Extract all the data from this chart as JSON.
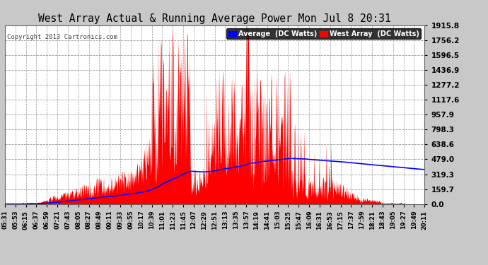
{
  "title": "West Array Actual & Running Average Power Mon Jul 8 20:31",
  "copyright": "Copyright 2013 Cartronics.com",
  "legend_avg": "Average  (DC Watts)",
  "legend_west": "West Array  (DC Watts)",
  "y_tick_labels": [
    "0.0",
    "159.7",
    "319.3",
    "479.0",
    "638.6",
    "798.3",
    "957.9",
    "1117.6",
    "1277.2",
    "1436.9",
    "1596.5",
    "1756.2",
    "1915.8"
  ],
  "y_tick_values": [
    0.0,
    159.7,
    319.3,
    479.0,
    638.6,
    798.3,
    957.9,
    1117.6,
    1277.2,
    1436.9,
    1596.5,
    1756.2,
    1915.8
  ],
  "ymax": 1915.8,
  "background_color": "#c8c8c8",
  "plot_bg_color": "#ffffff",
  "bar_color": "#ff0000",
  "avg_line_color": "#0000ff",
  "title_color": "#000000",
  "grid_color": "#999999",
  "x_tick_labels": [
    "05:31",
    "05:53",
    "06:15",
    "06:37",
    "06:59",
    "07:21",
    "07:43",
    "08:05",
    "08:27",
    "08:49",
    "09:11",
    "09:33",
    "09:55",
    "10:17",
    "10:39",
    "11:01",
    "11:23",
    "11:45",
    "12:07",
    "12:29",
    "12:51",
    "13:13",
    "13:35",
    "13:57",
    "14:19",
    "14:41",
    "15:03",
    "15:25",
    "15:47",
    "16:09",
    "16:31",
    "16:53",
    "17:15",
    "17:37",
    "17:59",
    "18:21",
    "18:43",
    "19:05",
    "19:27",
    "19:49",
    "20:11"
  ]
}
